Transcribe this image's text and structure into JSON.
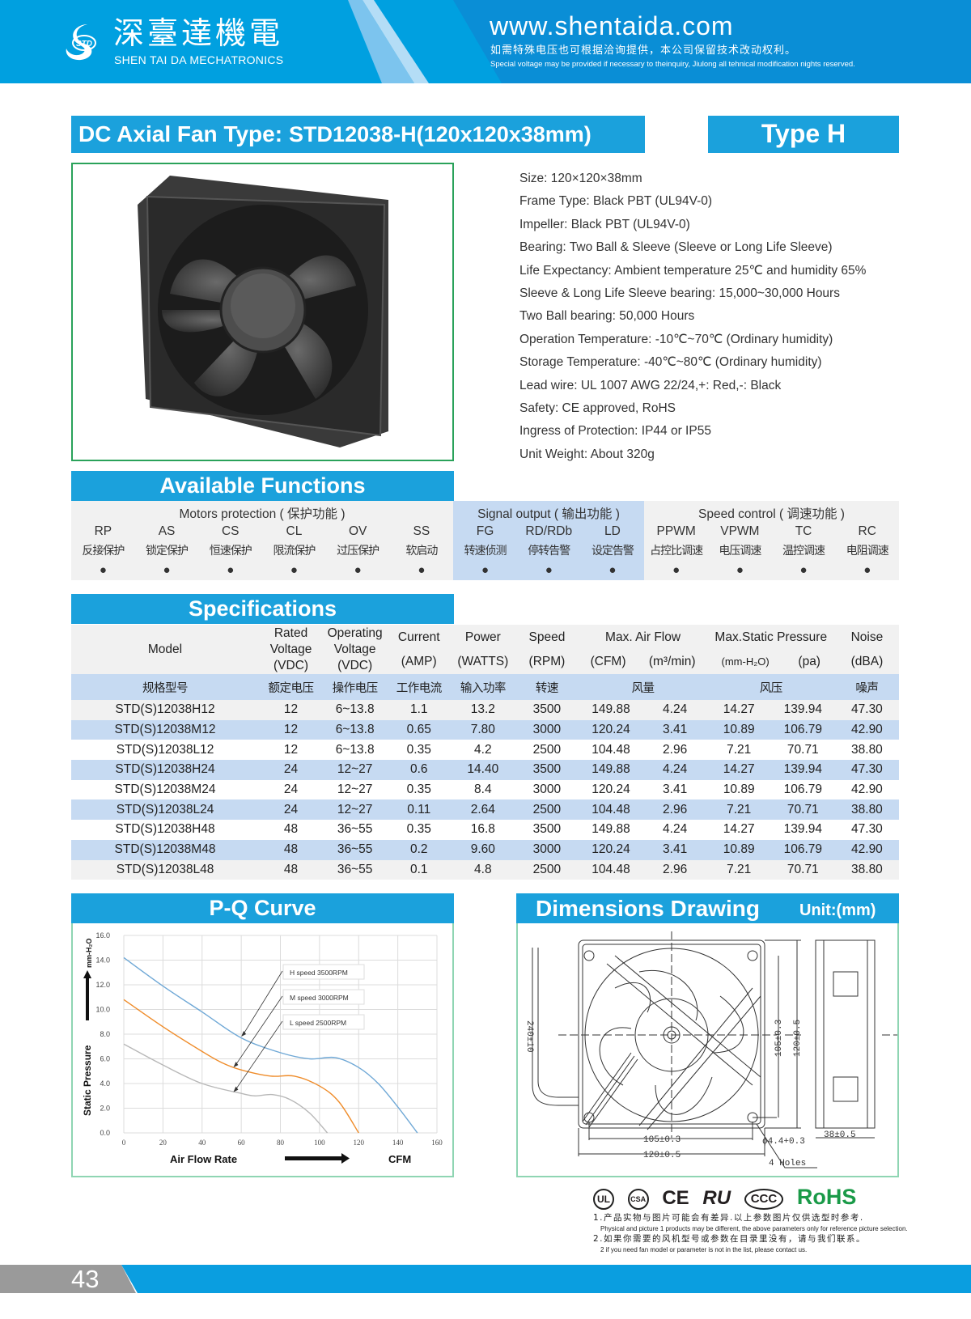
{
  "header": {
    "brand_cn": "深臺達機電",
    "brand_en": "SHEN TAI DA MECHATRONICS",
    "logo_text": "STD",
    "url": "www.shentaida.com",
    "notice_cn": "如需特殊电压也可根据洽询提供，本公司保留技术改动权利。",
    "notice_en": "Special voltage may be provided if necessary to theinquiry, Jiulong all tehnical modification nights reserved."
  },
  "title": {
    "prefix": "DC Axial Fan  Type:",
    "model": "STD12038-H(120x120x38mm)",
    "type_badge": "Type  H"
  },
  "specs": [
    "Size: 120×120×38mm",
    "Frame Type: Black PBT (UL94V-0)",
    "Impeller: Black PBT (UL94V-0)",
    "Bearing: Two Ball & Sleeve (Sleeve or Long Life Sleeve)",
    "Life Expectancy: Ambient temperature 25℃ and humidity 65%",
    "Sleeve & Long Life Sleeve bearing: 15,000~30,000 Hours",
    "Two Ball bearing: 50,000 Hours",
    "Operation Temperature: -10℃~70℃ (Ordinary humidity)",
    "Storage Temperature: -40℃~80℃ (Ordinary humidity)",
    "Lead wire: UL 1007 AWG 22/24,+: Red,-: Black",
    "Safety: CE approved, RoHS",
    "Ingress of Protection: IP44 or IP55",
    "Unit Weight: About 320g"
  ],
  "functions": {
    "heading": "Available Functions",
    "groups": [
      {
        "label": "Motors protection ( 保护功能 )"
      },
      {
        "label": "Signal output ( 输出功能 )"
      },
      {
        "label": "Speed control ( 调速功能 )"
      }
    ],
    "items": [
      {
        "code": "RP",
        "cn": "反接保护",
        "mark": "●"
      },
      {
        "code": "AS",
        "cn": "锁定保护",
        "mark": "●"
      },
      {
        "code": "CS",
        "cn": "恒速保护",
        "mark": "●"
      },
      {
        "code": "CL",
        "cn": "限流保护",
        "mark": "●"
      },
      {
        "code": "OV",
        "cn": "过压保护",
        "mark": "●"
      },
      {
        "code": "SS",
        "cn": "软启动",
        "mark": "●"
      },
      {
        "code": "FG",
        "cn": "转速侦测",
        "mark": "●"
      },
      {
        "code": "RD/RDb",
        "cn": "停转告警",
        "mark": "●"
      },
      {
        "code": "LD",
        "cn": "设定告警",
        "mark": "●"
      },
      {
        "code": "PPWM",
        "cn": "占控比调速",
        "mark": "●"
      },
      {
        "code": "VPWM",
        "cn": "电压调速",
        "mark": "●"
      },
      {
        "code": "TC",
        "cn": "温控调速",
        "mark": "●"
      },
      {
        "code": "RC",
        "cn": "电阻调速",
        "mark": "●"
      }
    ],
    "signal_bg": "#c6daf2"
  },
  "specifications": {
    "heading": "Specifications",
    "headers": {
      "model": "Model",
      "rated": [
        "Rated",
        "Voltage",
        "(VDC)"
      ],
      "operating": [
        "Operating",
        "Voltage",
        "(VDC)"
      ],
      "current": [
        "Current",
        "(AMP)"
      ],
      "power": [
        "Power",
        "(WATTS)"
      ],
      "speed": [
        "Speed",
        "(RPM)"
      ],
      "airflow": "Max. Air Flow",
      "cfm": "(CFM)",
      "m3": "(m³/min)",
      "pressure": "Max.Static Pressure",
      "mmh2o": "(mm-H₂O)",
      "pa": "(pa)",
      "noise": [
        "Noise",
        "(dBA)"
      ]
    },
    "headers_cn": {
      "model": "规格型号",
      "rated": "额定电压",
      "operating": "操作电压",
      "current": "工作电流",
      "power": "输入功率",
      "speed": "转速",
      "airflow": "风量",
      "pressure": "风压",
      "noise": "噪声"
    },
    "rows": [
      [
        "STD(S)12038H12",
        "12",
        "6~13.8",
        "1.1",
        "13.2",
        "3500",
        "149.88",
        "4.24",
        "14.27",
        "139.94",
        "47.30"
      ],
      [
        "STD(S)12038M12",
        "12",
        "6~13.8",
        "0.65",
        "7.80",
        "3000",
        "120.24",
        "3.41",
        "10.89",
        "106.79",
        "42.90"
      ],
      [
        "STD(S)12038L12",
        "12",
        "6~13.8",
        "0.35",
        "4.2",
        "2500",
        "104.48",
        "2.96",
        "7.21",
        "70.71",
        "38.80"
      ],
      [
        "STD(S)12038H24",
        "24",
        "12~27",
        "0.6",
        "14.40",
        "3500",
        "149.88",
        "4.24",
        "14.27",
        "139.94",
        "47.30"
      ],
      [
        "STD(S)12038M24",
        "24",
        "12~27",
        "0.35",
        "8.4",
        "3000",
        "120.24",
        "3.41",
        "10.89",
        "106.79",
        "42.90"
      ],
      [
        "STD(S)12038L24",
        "24",
        "12~27",
        "0.11",
        "2.64",
        "2500",
        "104.48",
        "2.96",
        "7.21",
        "70.71",
        "38.80"
      ],
      [
        "STD(S)12038H48",
        "48",
        "36~55",
        "0.35",
        "16.8",
        "3500",
        "149.88",
        "4.24",
        "14.27",
        "139.94",
        "47.30"
      ],
      [
        "STD(S)12038M48",
        "48",
        "36~55",
        "0.2",
        "9.60",
        "3000",
        "120.24",
        "3.41",
        "10.89",
        "106.79",
        "42.90"
      ],
      [
        "STD(S)12038L48",
        "48",
        "36~55",
        "0.1",
        "4.8",
        "2500",
        "104.48",
        "2.96",
        "7.21",
        "70.71",
        "38.80"
      ]
    ]
  },
  "pq": {
    "heading": "P-Q Curve"
  },
  "chart_data": {
    "type": "line",
    "xlabel": "Air   Flow  Rate",
    "xunit": "CFM",
    "ylabel": "Static   Pressure",
    "yunit": "mm-H₂O",
    "xlim": [
      0,
      160
    ],
    "ylim": [
      0,
      16
    ],
    "xticks": [
      "0",
      "20",
      "40",
      "60",
      "80",
      "100",
      "120",
      "140",
      "160"
    ],
    "yticks": [
      "0.0",
      "2.0",
      "4.0",
      "6.0",
      "8.0",
      "10.0",
      "12.0",
      "14.0",
      "16.0"
    ],
    "grid": true,
    "series": [
      {
        "name": "H  speed  3500RPM",
        "color": "#6fa8d6",
        "points": [
          [
            0,
            14.2
          ],
          [
            20,
            11.9
          ],
          [
            40,
            9.8
          ],
          [
            60,
            7.7
          ],
          [
            80,
            6.5
          ],
          [
            95,
            6.0
          ],
          [
            108,
            6.1
          ],
          [
            120,
            5.3
          ],
          [
            130,
            4.0
          ],
          [
            140,
            2.1
          ],
          [
            150,
            0
          ]
        ]
      },
      {
        "name": "M  speed  3000RPM",
        "color": "#ef8c2a",
        "points": [
          [
            0,
            10.8
          ],
          [
            20,
            8.6
          ],
          [
            40,
            6.6
          ],
          [
            50,
            5.7
          ],
          [
            60,
            5.1
          ],
          [
            75,
            4.6
          ],
          [
            87,
            4.6
          ],
          [
            100,
            3.8
          ],
          [
            110,
            2.5
          ],
          [
            120,
            0
          ]
        ]
      },
      {
        "name": "L  speed  2500RPM",
        "color": "#b8b8b8",
        "points": [
          [
            0,
            7.2
          ],
          [
            20,
            5.5
          ],
          [
            40,
            4.0
          ],
          [
            60,
            3.2
          ],
          [
            67,
            3.0
          ],
          [
            76,
            3.1
          ],
          [
            85,
            2.7
          ],
          [
            95,
            1.6
          ],
          [
            104,
            0
          ]
        ]
      }
    ]
  },
  "dimensions": {
    "heading": "Dimensions Drawing",
    "unit": "Unit:(mm)",
    "lead": "240±10",
    "inner_v": "105±0.3",
    "outer_v": "120±0.5",
    "inner_h": "105±0.3",
    "outer_h": "120±0.5",
    "hole": "ϕ4.4+0.3",
    "holes": "4  Holes",
    "depth": "38±0.5"
  },
  "certifications": {
    "marks": [
      "UL",
      "CSA",
      "CE",
      "RU",
      "CCC",
      "RoHS"
    ],
    "rohs_color": "#1a9a48"
  },
  "notes": [
    {
      "cn": "1.产品实物与图片可能会有差异.以上参数图片仅供选型时参考.",
      "en": "Physical and picture 1 products may be different, the above parameters only for reference picture selection."
    },
    {
      "cn": "2.如果你需要的风机型号或参数在目录里没有，请与我们联系。",
      "en": "2 if you need fan model or parameter is not in the list, please contact us."
    }
  ],
  "footer": {
    "page": "43"
  }
}
